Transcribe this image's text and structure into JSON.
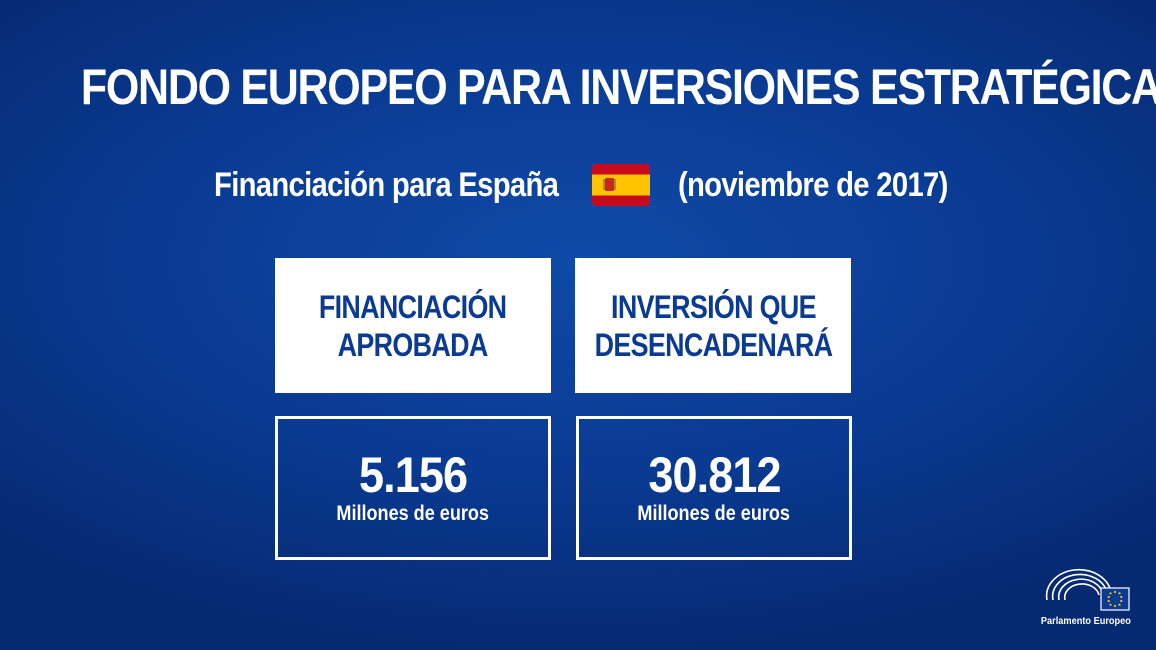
{
  "title": "FONDO EUROPEO PARA INVERSIONES ESTRATÉGICAS",
  "subtitle": {
    "before_flag": "Financiación para España",
    "after_flag": "(noviembre de 2017)",
    "flag_icon": "spain-flag-icon"
  },
  "boxes": [
    {
      "header": "FINANCIACIÓN\nAPROBADA",
      "value": "5.156",
      "unit": "Millones de euros"
    },
    {
      "header": "INVERSIÓN QUE\nDESENCADENARÁ",
      "value": "30.812",
      "unit": "Millones de euros"
    }
  ],
  "logo": {
    "text": "Parlamento Europeo",
    "icon": "european-parliament-logo-icon"
  },
  "colors": {
    "background": "#0a3a92",
    "box_text": "#0a3a92",
    "white": "#ffffff",
    "flag_red": "#c60b1e",
    "flag_yellow": "#ffc400"
  }
}
